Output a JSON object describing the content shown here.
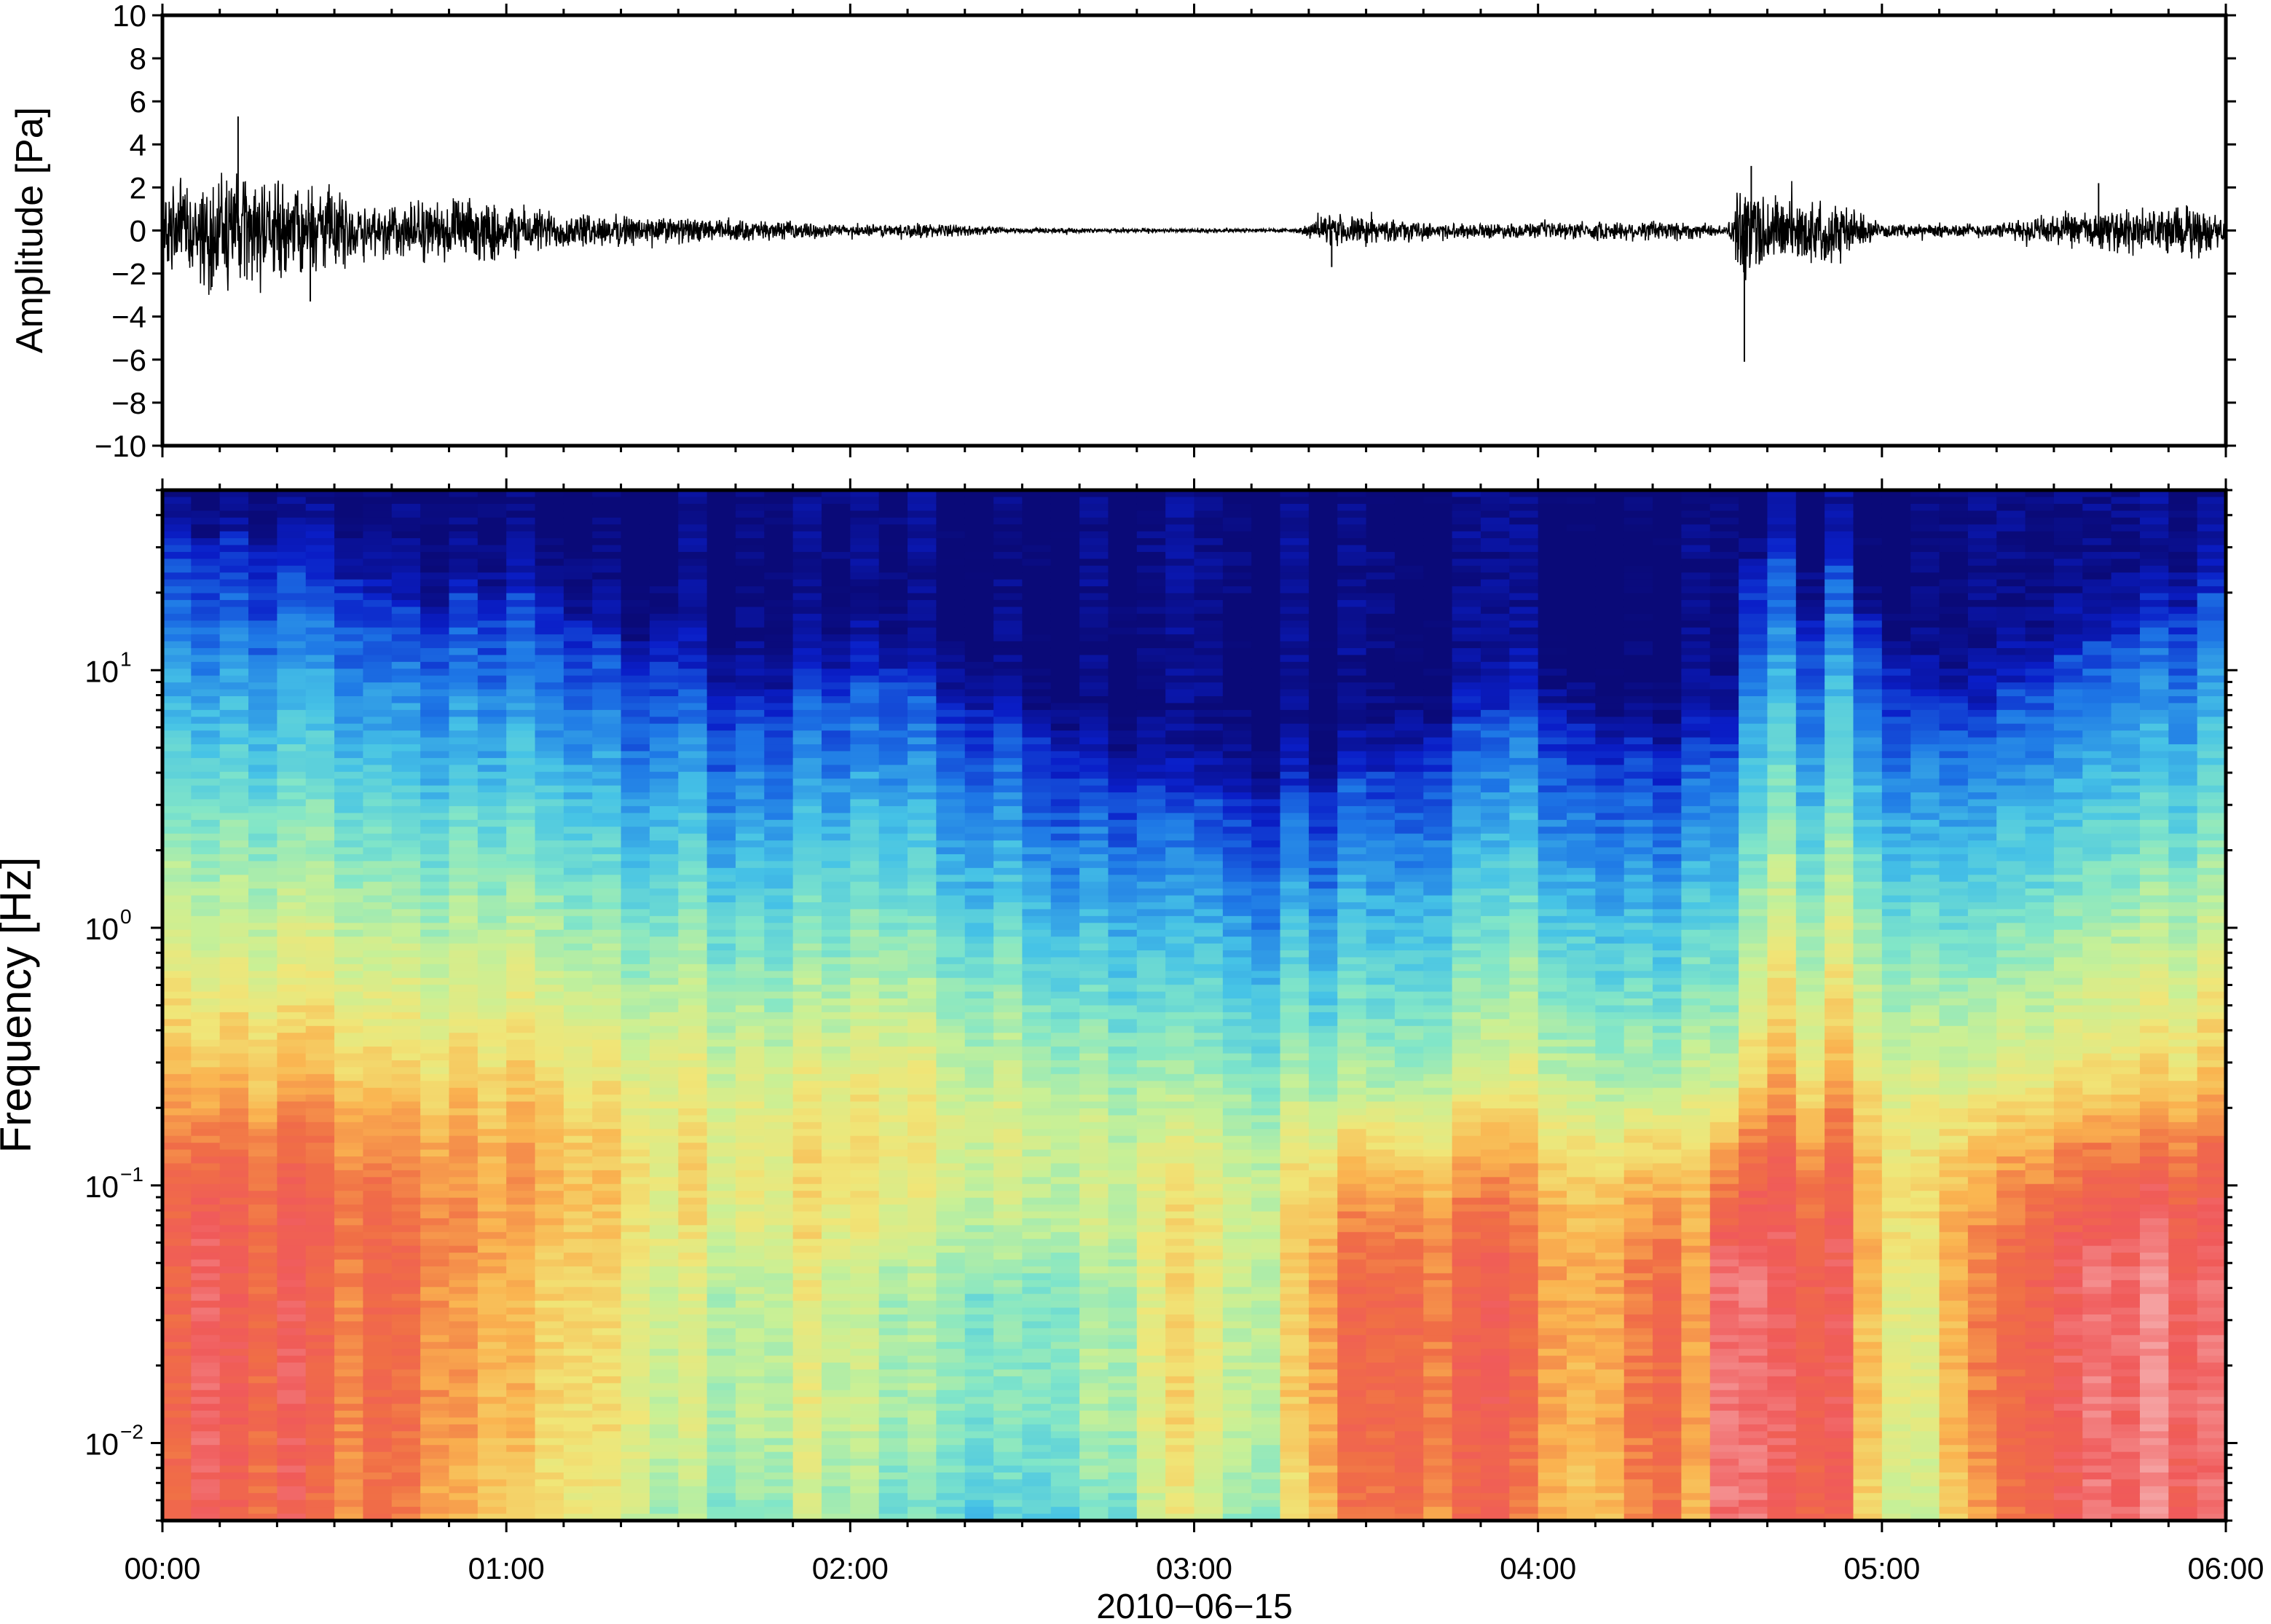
{
  "chart_data": [
    {
      "type": "line",
      "ylabel": "Amplitude [Pa]",
      "ylim": [
        -10,
        10
      ],
      "yticks": [
        -10,
        -8,
        -6,
        -4,
        -2,
        0,
        2,
        4,
        6,
        8,
        10
      ],
      "ytick_labels": [
        "−10",
        "−8",
        "−6",
        "−4",
        "−2",
        "0",
        "2",
        "4",
        "6",
        "8",
        "10"
      ],
      "xlim_hours": [
        0,
        6
      ],
      "grid": false,
      "envelope_hours": [
        0,
        0.1,
        0.2,
        0.3,
        0.45,
        0.6,
        0.8,
        1.0,
        1.2,
        1.4,
        1.6,
        1.8,
        2.0,
        2.2,
        2.5,
        2.8,
        3.0,
        3.3,
        3.4,
        3.55,
        3.7,
        3.9,
        4.0,
        4.2,
        4.4,
        4.55,
        4.6,
        4.65,
        4.75,
        4.85,
        5.0,
        5.2,
        5.35,
        5.5,
        5.7,
        5.9,
        6.0
      ],
      "envelope_amplitude": [
        2.0,
        2.8,
        3.2,
        2.6,
        2.4,
        1.5,
        1.7,
        1.5,
        0.9,
        0.8,
        0.6,
        0.5,
        0.3,
        0.4,
        0.15,
        0.1,
        0.12,
        0.12,
        0.9,
        0.6,
        0.4,
        0.4,
        0.4,
        0.5,
        0.6,
        0.2,
        3.0,
        2.2,
        1.6,
        1.8,
        0.3,
        0.4,
        0.4,
        0.9,
        1.1,
        1.4,
        0.7
      ],
      "peaks": [
        {
          "t_hours": 0.22,
          "value": 5.3
        },
        {
          "t_hours": 0.43,
          "value": -3.3
        },
        {
          "t_hours": 3.4,
          "value": -1.7
        },
        {
          "t_hours": 4.6,
          "value": -6.1
        },
        {
          "t_hours": 4.62,
          "value": 3.0
        },
        {
          "t_hours": 5.63,
          "value": 2.2
        }
      ]
    },
    {
      "type": "heatmap",
      "ylabel": "Frequency [Hz]",
      "yscale": "log",
      "ylim": [
        0.005,
        50
      ],
      "yticks": [
        0.01,
        0.1,
        1,
        10
      ],
      "ytick_labels": [
        {
          "base": "10",
          "exp": "−2"
        },
        {
          "base": "10",
          "exp": "−1"
        },
        {
          "base": "10",
          "exp": "0"
        },
        {
          "base": "10",
          "exp": "1"
        }
      ],
      "xlabel": "2010−06−15",
      "xlim_hours": [
        0,
        6
      ],
      "xticks_hours": [
        0,
        1,
        2,
        3,
        4,
        5,
        6
      ],
      "xtick_labels": [
        "00:00",
        "01:00",
        "02:00",
        "03:00",
        "04:00",
        "05:00",
        "06:00"
      ],
      "colormap": [
        "#0a0a78",
        "#0a1ec8",
        "#1e78e6",
        "#46c3e6",
        "#82e6c8",
        "#c8f096",
        "#f0e678",
        "#fab450",
        "#f06e46",
        "#f05a5a",
        "#f5a0a0"
      ],
      "columns_per_hour": 12,
      "high_edge_log10_hz": [
        1.55,
        1.5,
        1.55,
        1.45,
        1.4,
        1.35,
        1.35,
        1.3,
        1.25,
        1.2,
        1.3,
        1.25,
        1.3,
        1.3,
        1.2,
        1.15,
        1.05,
        1.15,
        1.0,
        0.95,
        0.9,
        0.9,
        0.95,
        0.95,
        0.95,
        1.0,
        0.95,
        0.9,
        0.85,
        0.8,
        0.75,
        0.7,
        0.6,
        0.6,
        0.55,
        0.5,
        0.5,
        0.5,
        0.5,
        0.55,
        0.55,
        0.6,
        0.6,
        0.7,
        0.75,
        0.8,
        0.85,
        0.9,
        0.85,
        0.8,
        0.75,
        0.75,
        0.7,
        0.75,
        0.8,
        1.4,
        1.5,
        1.2,
        1.4,
        1.2,
        1.0,
        0.9,
        0.9,
        0.85,
        0.95,
        1.0,
        1.05,
        1.1,
        1.15,
        1.2,
        1.25,
        1.3
      ],
      "low_intensity": [
        0.85,
        0.95,
        0.9,
        0.85,
        0.88,
        0.8,
        0.78,
        0.82,
        0.8,
        0.75,
        0.72,
        0.7,
        0.68,
        0.66,
        0.65,
        0.62,
        0.6,
        0.55,
        0.52,
        0.5,
        0.48,
        0.5,
        0.55,
        0.5,
        0.48,
        0.45,
        0.44,
        0.45,
        0.42,
        0.4,
        0.42,
        0.44,
        0.45,
        0.47,
        0.55,
        0.6,
        0.55,
        0.5,
        0.52,
        0.62,
        0.75,
        0.8,
        0.82,
        0.85,
        0.8,
        0.82,
        0.85,
        0.78,
        0.75,
        0.72,
        0.75,
        0.8,
        0.85,
        0.7,
        0.95,
        0.98,
        0.9,
        0.88,
        0.85,
        0.7,
        0.6,
        0.55,
        0.7,
        0.75,
        0.8,
        0.85,
        0.88,
        0.92,
        0.9,
        0.95,
        0.92,
        0.9
      ]
    }
  ]
}
